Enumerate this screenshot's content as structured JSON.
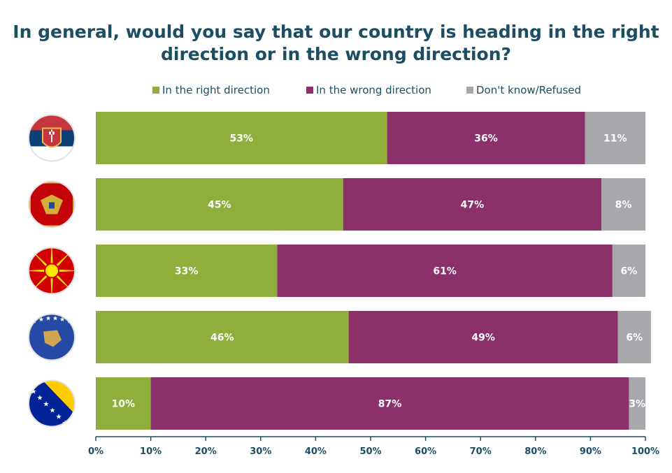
{
  "chart_data": {
    "type": "bar",
    "orientation": "horizontal",
    "stacked": true,
    "title": "In general, would you say that our country is heading in the right direction or in the wrong direction?",
    "title_lines": [
      "In general, would you say that our country is heading in the right",
      "direction or in the wrong direction?"
    ],
    "xlabel": "",
    "ylabel": "",
    "xlim": [
      0,
      100
    ],
    "x_ticks": [
      "0%",
      "10%",
      "20%",
      "30%",
      "40%",
      "50%",
      "60%",
      "70%",
      "80%",
      "90%",
      "100%"
    ],
    "legend_position": "top",
    "grid": false,
    "categories": [
      "serbia-flag",
      "montenegro-flag",
      "north-macedonia-flag",
      "kosovo-flag",
      "bosnia-flag"
    ],
    "series": [
      {
        "name": "In the right direction",
        "color": "#8fae3c",
        "values": [
          53,
          45,
          33,
          46,
          10
        ]
      },
      {
        "name": "In the wrong direction",
        "color": "#8c306a",
        "values": [
          36,
          47,
          61,
          49,
          87
        ]
      },
      {
        "name": "Don't know/Refused",
        "color": "#a8a8ac",
        "values": [
          11,
          8,
          6,
          6,
          3
        ]
      }
    ]
  }
}
